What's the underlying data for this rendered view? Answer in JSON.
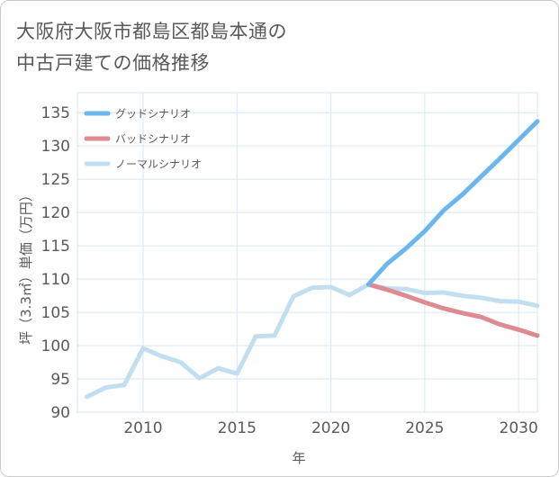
{
  "title_line1": "大阪府大阪市都島区都島本通の",
  "title_line2": "中古戸建ての価格推移",
  "chart_data": {
    "type": "line",
    "title": "大阪府大阪市都島区都島本通の中古戸建ての価格推移",
    "xlabel": "年",
    "ylabel": "坪（3.3㎡）単価（万円）",
    "xlim": [
      2006.5,
      2031
    ],
    "ylim": [
      90,
      138
    ],
    "xticks": [
      2010,
      2015,
      2020,
      2025,
      2030
    ],
    "yticks": [
      90,
      95,
      100,
      105,
      110,
      115,
      120,
      125,
      130,
      135
    ],
    "grid": true,
    "legend_position": "top-left",
    "series": [
      {
        "name": "グッドシナリオ",
        "color": "#6bb6ee",
        "x": [
          2022,
          2023,
          2024,
          2025,
          2026,
          2027,
          2028,
          2029,
          2030,
          2031
        ],
        "y": [
          109.2,
          112.3,
          114.6,
          117.2,
          120.3,
          122.7,
          125.4,
          128.1,
          130.9,
          133.7
        ]
      },
      {
        "name": "バッドシナリオ",
        "color": "#dd8a92",
        "x": [
          2022,
          2023,
          2024,
          2025,
          2026,
          2027,
          2028,
          2029,
          2030,
          2031
        ],
        "y": [
          109.2,
          108.4,
          107.5,
          106.5,
          105.6,
          104.9,
          104.3,
          103.2,
          102.4,
          101.5
        ]
      },
      {
        "name": "ノーマルシナリオ",
        "color": "#c2dff0",
        "x": [
          2007,
          2008,
          2009,
          2010,
          2011,
          2012,
          2013,
          2014,
          2015,
          2016,
          2017,
          2018,
          2019,
          2020,
          2021,
          2022,
          2023,
          2024,
          2025,
          2026,
          2027,
          2028,
          2029,
          2030,
          2031
        ],
        "y": [
          92.3,
          93.7,
          94.1,
          99.6,
          98.4,
          97.5,
          95.1,
          96.6,
          95.8,
          101.4,
          101.5,
          107.4,
          108.7,
          108.8,
          107.6,
          109.2,
          108.6,
          108.5,
          107.9,
          108.0,
          107.5,
          107.2,
          106.7,
          106.6,
          106.0
        ]
      }
    ]
  }
}
